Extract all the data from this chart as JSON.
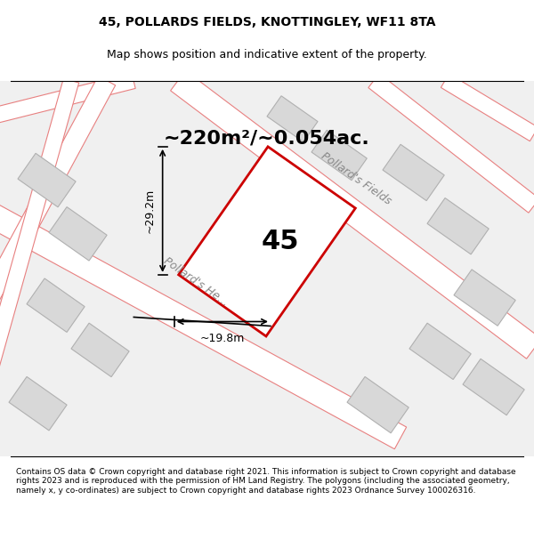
{
  "title_line1": "45, POLLARDS FIELDS, KNOTTINGLEY, WF11 8TA",
  "title_line2": "Map shows position and indicative extent of the property.",
  "area_text": "~220m²/~0.054ac.",
  "plot_number": "45",
  "dim_width": "~19.8m",
  "dim_height": "~29.2m",
  "road_label1": "Pollard's Fields",
  "road_label2": "Pollard's He...",
  "footer": "Contains OS data © Crown copyright and database right 2021. This information is subject to Crown copyright and database rights 2023 and is reproduced with the permission of HM Land Registry. The polygons (including the associated geometry, namely x, y co-ordinates) are subject to Crown copyright and database rights 2023 Ordnance Survey 100026316.",
  "bg_color": "#f0f0f0",
  "map_bg": "#f5f5f5",
  "road_color": "#ffffff",
  "plot_fill": "#ffffff",
  "plot_edge": "#cc0000",
  "building_fill": "#e0e0e0",
  "building_edge": "#bbbbbb",
  "dim_color": "#000000",
  "road_line_color": "#e88080",
  "title_fontsize": 10,
  "subtitle_fontsize": 9,
  "footer_fontsize": 6.5
}
